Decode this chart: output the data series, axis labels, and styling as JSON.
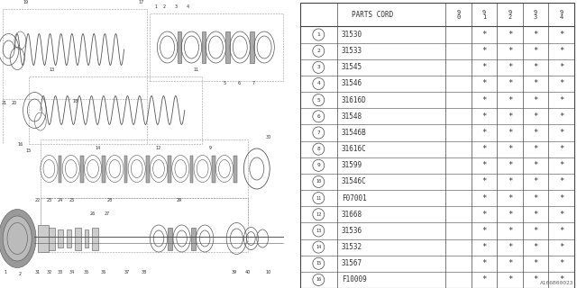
{
  "rows": [
    [
      "1",
      "31530"
    ],
    [
      "2",
      "31533"
    ],
    [
      "3",
      "31545"
    ],
    [
      "4",
      "31546"
    ],
    [
      "5",
      "31616D"
    ],
    [
      "6",
      "31548"
    ],
    [
      "7",
      "31546B"
    ],
    [
      "8",
      "31616C"
    ],
    [
      "9",
      "31599"
    ],
    [
      "10",
      "31546C"
    ],
    [
      "11",
      "F07001"
    ],
    [
      "12",
      "31668"
    ],
    [
      "13",
      "31536"
    ],
    [
      "14",
      "31532"
    ],
    [
      "15",
      "31567"
    ],
    [
      "16",
      "F10009"
    ]
  ],
  "year_cols": [
    "9\n0",
    "9\n1",
    "9\n2",
    "9\n3",
    "9\n4"
  ],
  "star_pattern": [
    false,
    true,
    true,
    true,
    true
  ],
  "ref_code": "A166B00023",
  "bg_color": "#ffffff",
  "line_color": "#444444",
  "text_color": "#333333"
}
